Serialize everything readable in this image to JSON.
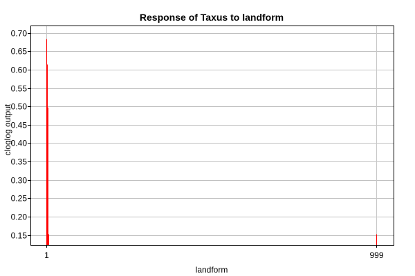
{
  "chart_data": {
    "type": "bar",
    "title": "Response of Taxus to landform",
    "xlabel": "landform",
    "ylabel": "cloglog output",
    "ylim": [
      0.123,
      0.72
    ],
    "y_ticks": [
      0.15,
      0.2,
      0.25,
      0.3,
      0.35,
      0.4,
      0.45,
      0.5,
      0.55,
      0.6,
      0.65,
      0.7
    ],
    "y_tick_labels": [
      "0.15",
      "0.20",
      "0.25",
      "0.30",
      "0.35",
      "0.40",
      "0.45",
      "0.50",
      "0.55",
      "0.60",
      "0.65",
      "0.70"
    ],
    "categories": [
      "1",
      "999"
    ],
    "x_tick_labels": [
      "1",
      "999"
    ],
    "grid": true,
    "bar_color": "#ff0000",
    "bars": [
      {
        "category": "1",
        "offset": 0,
        "value": 0.683
      },
      {
        "category": "1",
        "offset": 1,
        "value": 0.614
      },
      {
        "category": "1",
        "offset": 2,
        "value": 0.497
      },
      {
        "category": "1",
        "offset": 3,
        "value": 0.152
      },
      {
        "category": "999",
        "offset": 0,
        "value": 0.152
      }
    ]
  }
}
